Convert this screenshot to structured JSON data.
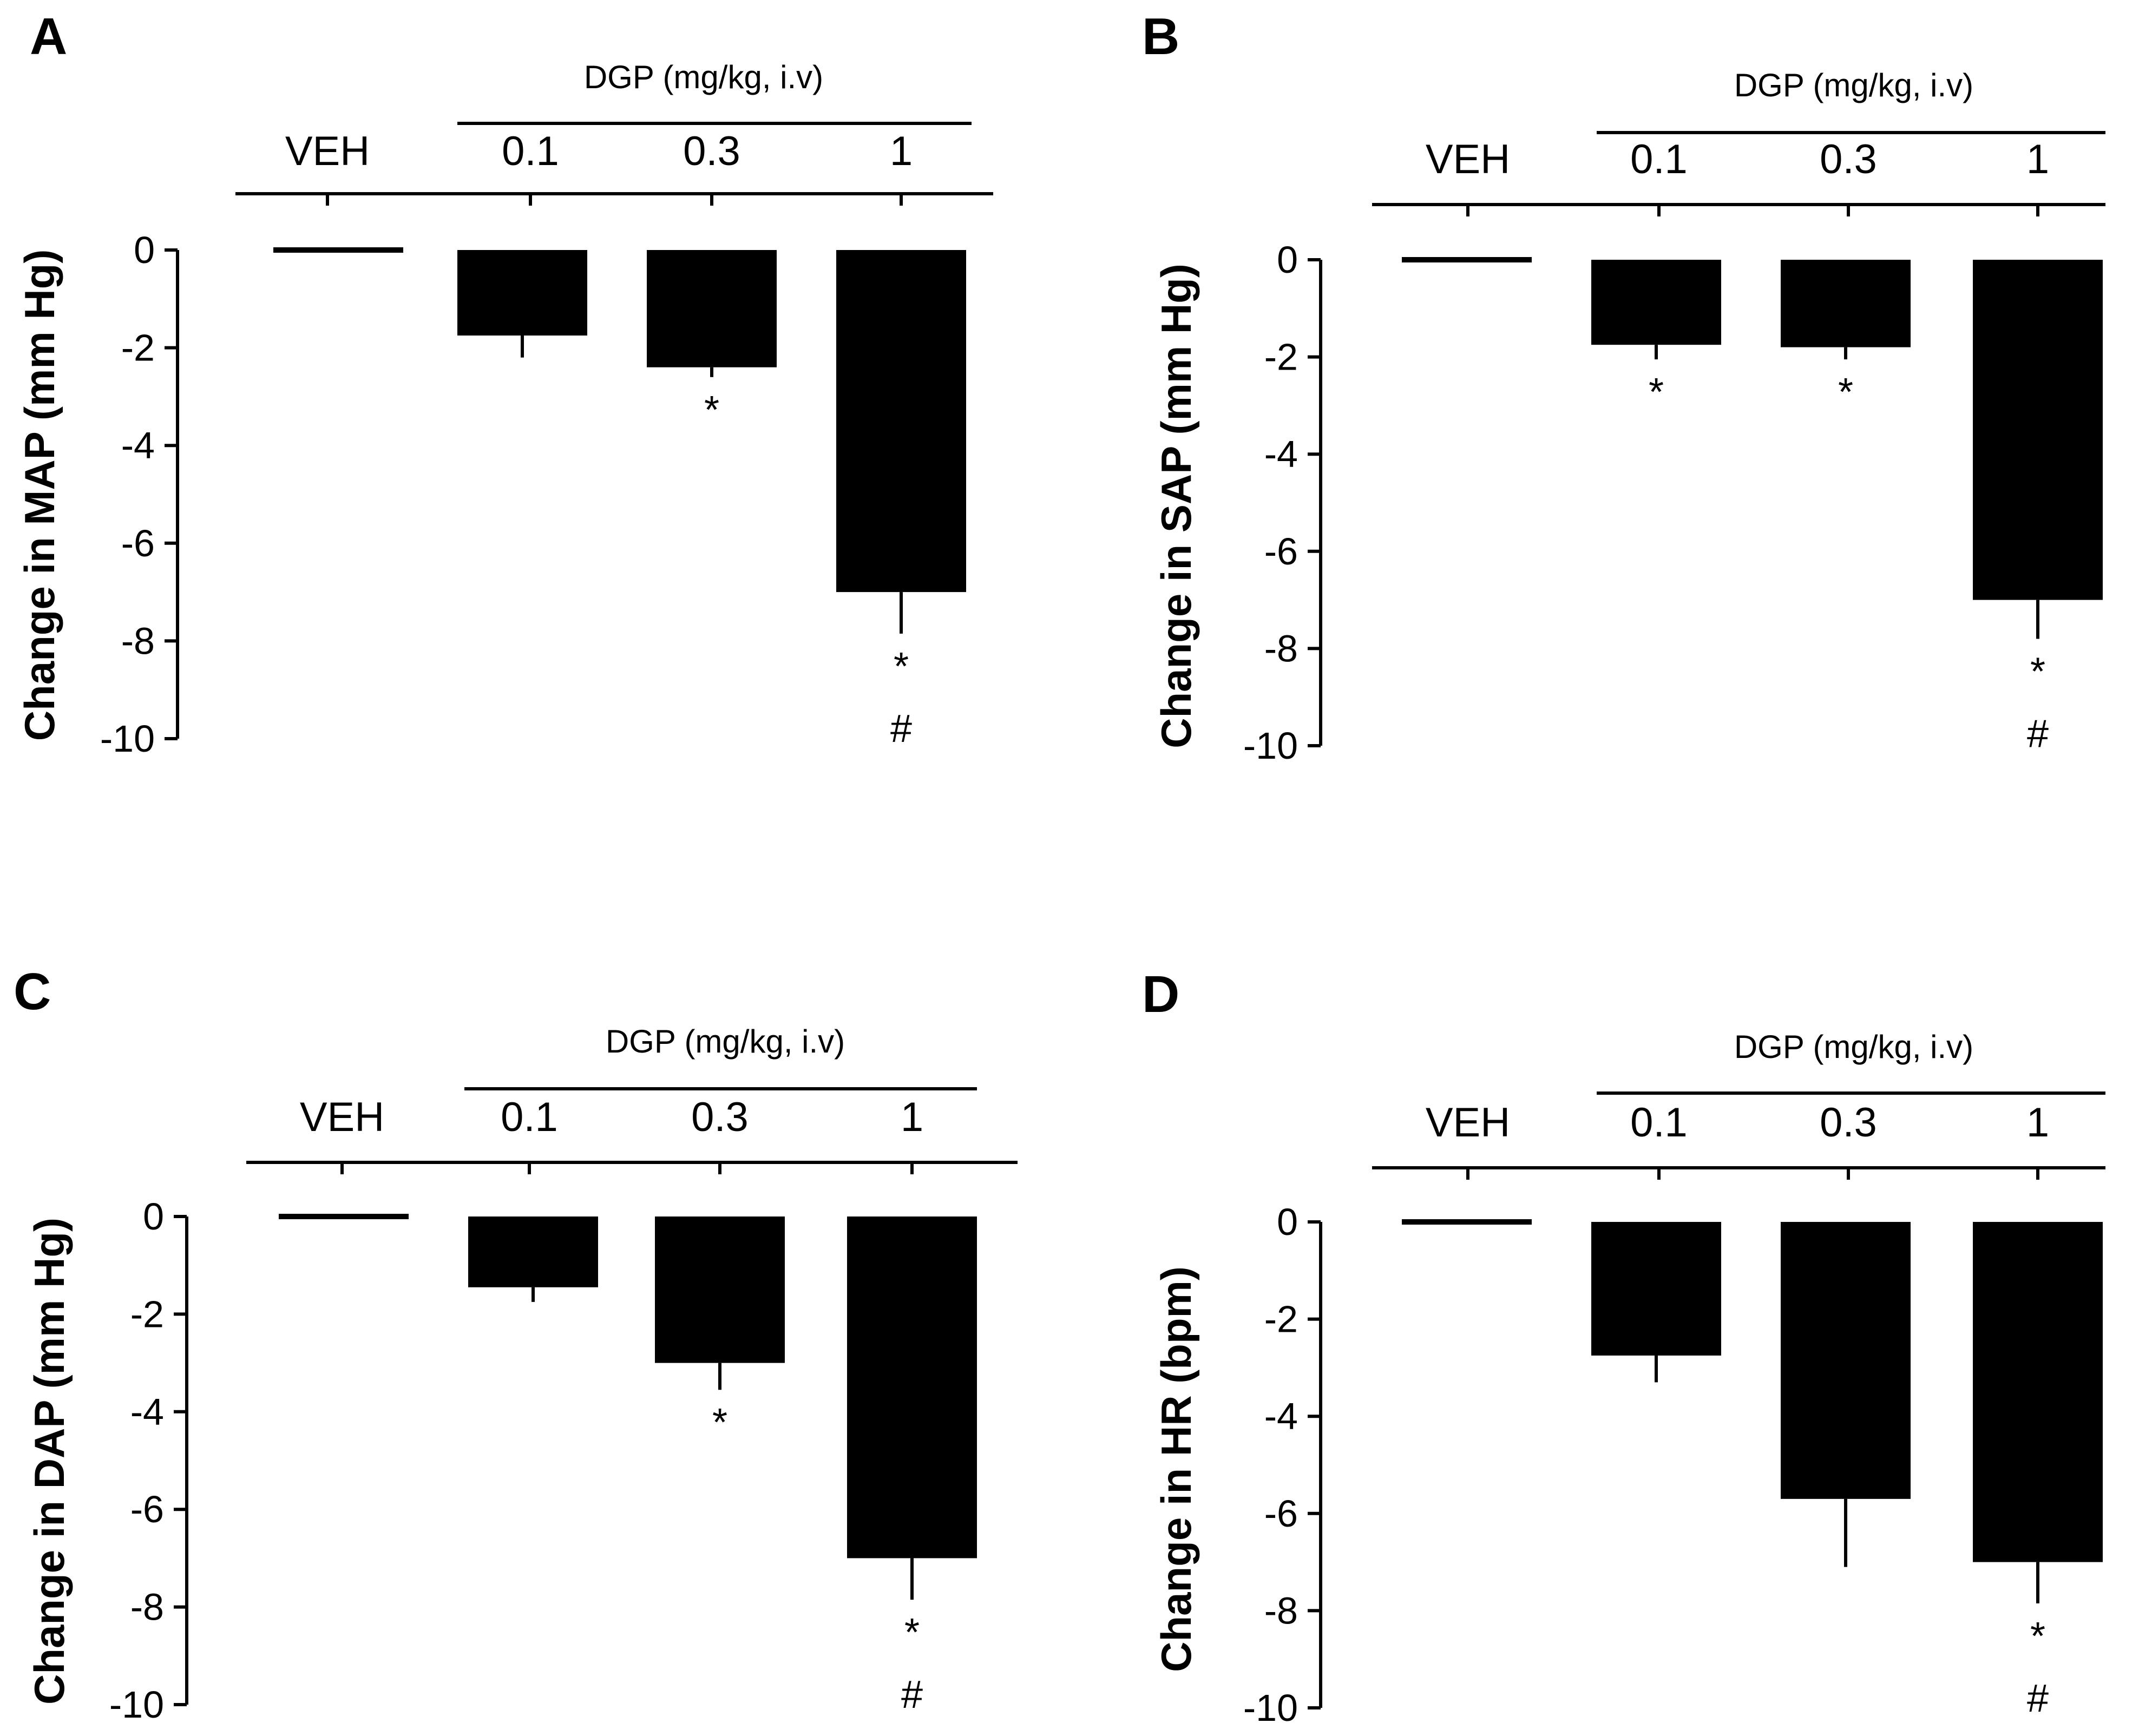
{
  "chart_data": [
    {
      "panel": "A",
      "type": "bar",
      "ylabel": "Change in MAP (mm Hg)",
      "group_label": "DGP (mg/kg, i.v)",
      "categories": [
        "VEH",
        "0.1",
        "0.3",
        "1"
      ],
      "values": [
        -0.1,
        -1.75,
        -2.4,
        -7.0
      ],
      "errors": [
        0.0,
        0.45,
        0.2,
        0.85
      ],
      "significance": [
        [],
        [],
        [
          "*"
        ],
        [
          "*",
          "#"
        ]
      ],
      "ylim": [
        -10,
        0
      ],
      "yticks": [
        0,
        -2,
        -4,
        -6,
        -8,
        -10
      ],
      "ytick_labels": [
        "0",
        "-2",
        "-4",
        "-6",
        "-8",
        "-10"
      ]
    },
    {
      "panel": "B",
      "type": "bar",
      "ylabel": "Change in SAP (mm Hg)",
      "group_label": "DGP (mg/kg, i.v)",
      "categories": [
        "VEH",
        "0.1",
        "0.3",
        "1"
      ],
      "values": [
        -0.1,
        -1.75,
        -1.8,
        -7.0
      ],
      "errors": [
        0.0,
        0.3,
        0.25,
        0.8
      ],
      "significance": [
        [],
        [
          "*"
        ],
        [
          "*"
        ],
        [
          "*",
          "#"
        ]
      ],
      "ylim": [
        -10,
        0
      ],
      "yticks": [
        0,
        -2,
        -4,
        -6,
        -8,
        -10
      ],
      "ytick_labels": [
        "0",
        "-2",
        "-4",
        "-6",
        "-8",
        "-10"
      ]
    },
    {
      "panel": "C",
      "type": "bar",
      "ylabel": "Change in DAP (mm Hg)",
      "group_label": "DGP (mg/kg, i.v)",
      "categories": [
        "VEH",
        "0.1",
        "0.3",
        "1"
      ],
      "values": [
        -0.1,
        -1.45,
        -3.0,
        -7.0
      ],
      "errors": [
        0.0,
        0.3,
        0.55,
        0.85
      ],
      "significance": [
        [],
        [],
        [
          "*"
        ],
        [
          "*",
          "#"
        ]
      ],
      "ylim": [
        -10,
        0
      ],
      "yticks": [
        0,
        -2,
        -4,
        -6,
        -8,
        -10
      ],
      "ytick_labels": [
        "0",
        "-2",
        "-4",
        "-6",
        "-8",
        "-10"
      ]
    },
    {
      "panel": "D",
      "type": "bar",
      "ylabel": "Change in HR (bpm)",
      "group_label": "DGP (mg/kg, i.v)",
      "categories": [
        "VEH",
        "0.1",
        "0.3",
        "1"
      ],
      "values": [
        -0.1,
        -2.75,
        -5.7,
        -7.0
      ],
      "errors": [
        0.0,
        0.55,
        1.4,
        0.85
      ],
      "significance": [
        [],
        [],
        [],
        [
          "*",
          "#"
        ]
      ],
      "ylim": [
        -10,
        0
      ],
      "yticks": [
        0,
        -2,
        -4,
        -6,
        -8,
        -10
      ],
      "ytick_labels": [
        "0",
        "-2",
        "-4",
        "-6",
        "-8",
        "-10"
      ]
    }
  ],
  "colors": {
    "bar": "#000000",
    "axis": "#000000",
    "background": "#ffffff"
  }
}
